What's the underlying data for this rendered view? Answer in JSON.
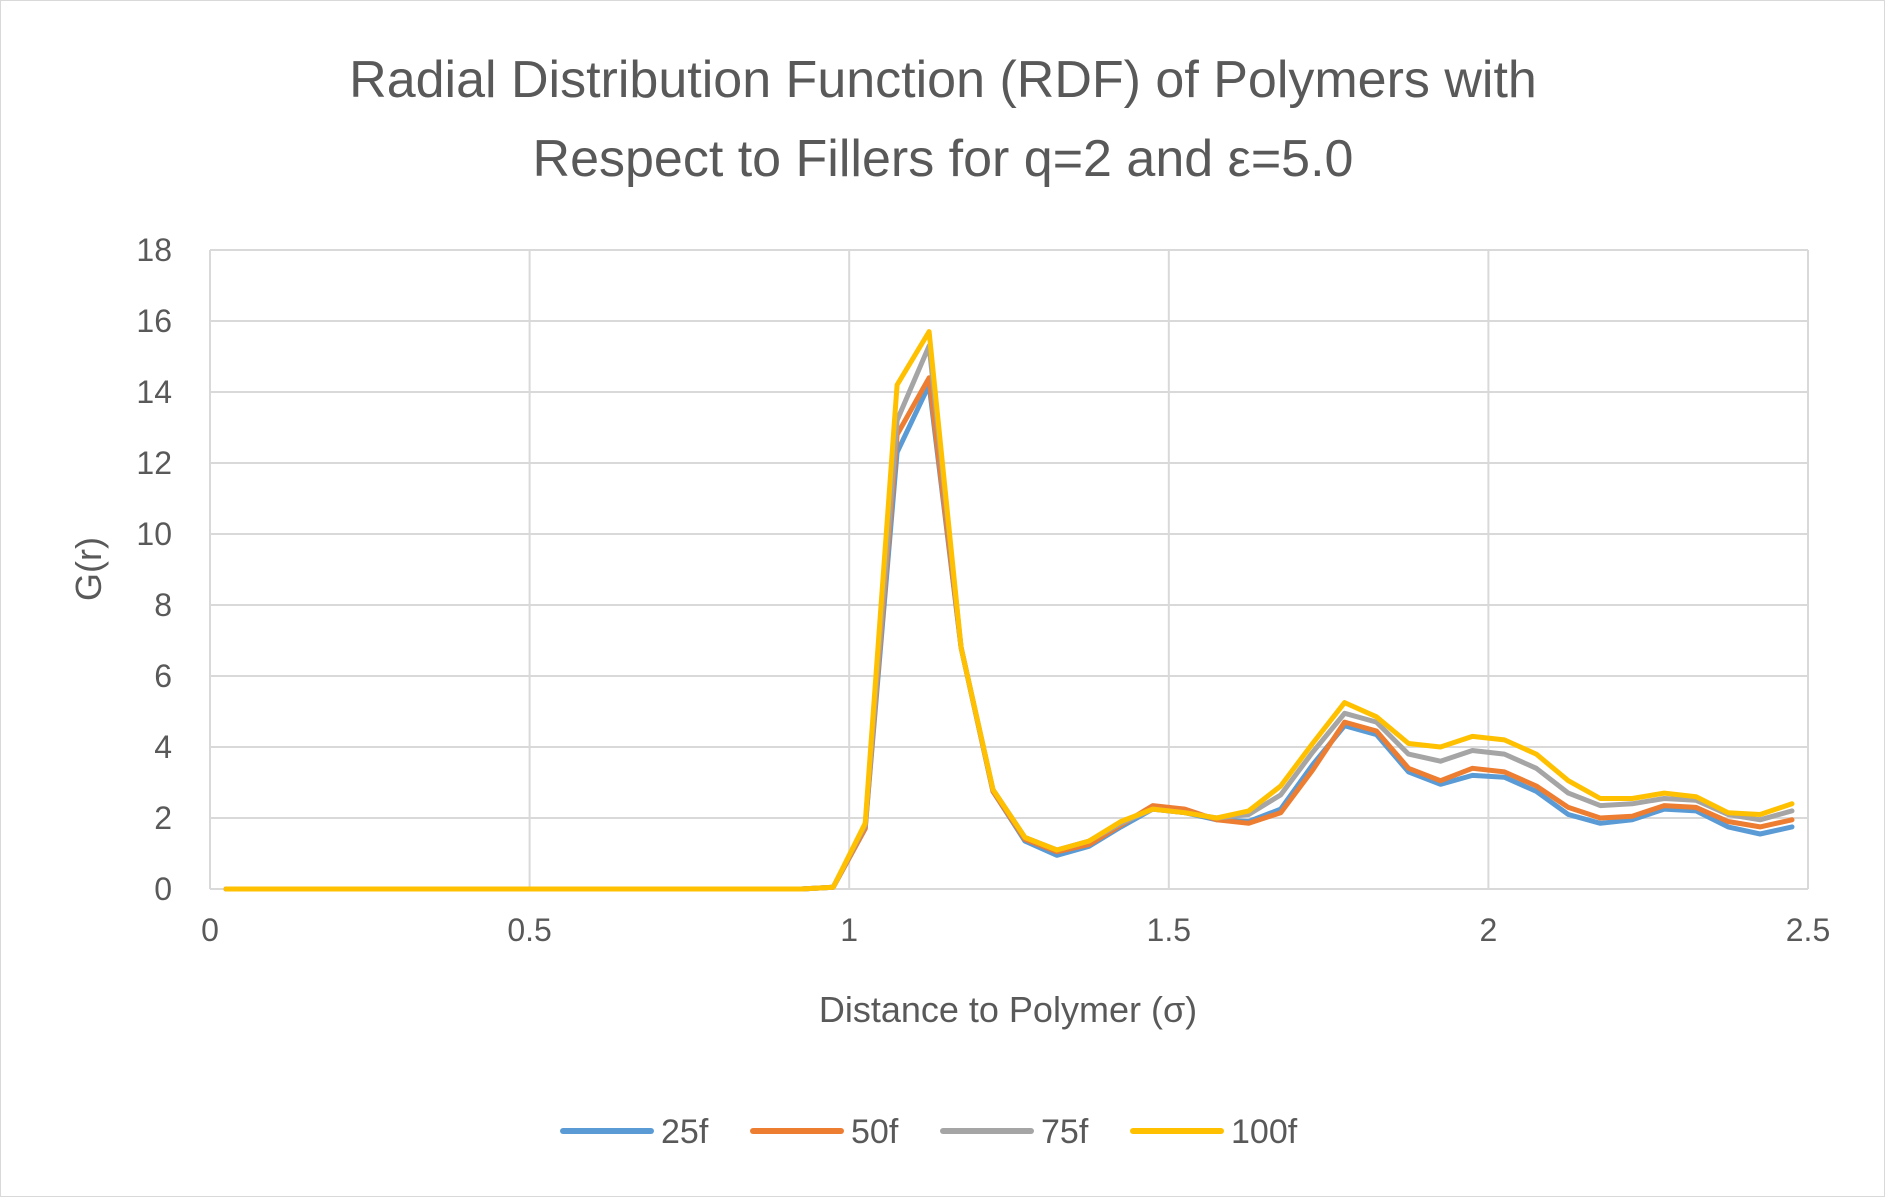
{
  "chart_data": {
    "type": "line",
    "title_lines": [
      "Radial Distribution Function (RDF) of Polymers with",
      "Respect to Fillers for q=2 and ε=5.0"
    ],
    "xlabel": "Distance to Polymer (σ)",
    "ylabel": "G(r)",
    "xlim": [
      0,
      2.5
    ],
    "ylim": [
      0,
      18
    ],
    "x_ticks": [
      "0",
      "0.5",
      "1",
      "1.5",
      "2",
      "2.5"
    ],
    "x_tick_values": [
      0,
      0.5,
      1,
      1.5,
      2,
      2.5
    ],
    "y_ticks": [
      "0",
      "2",
      "4",
      "6",
      "8",
      "10",
      "12",
      "14",
      "16",
      "18"
    ],
    "y_tick_values": [
      0,
      2,
      4,
      6,
      8,
      10,
      12,
      14,
      16,
      18
    ],
    "grid": true,
    "legend_position": "bottom",
    "x": [
      0.025,
      0.075,
      0.125,
      0.175,
      0.225,
      0.275,
      0.325,
      0.375,
      0.425,
      0.475,
      0.525,
      0.575,
      0.625,
      0.675,
      0.725,
      0.775,
      0.825,
      0.875,
      0.925,
      0.975,
      1.025,
      1.075,
      1.125,
      1.175,
      1.225,
      1.275,
      1.325,
      1.375,
      1.425,
      1.475,
      1.525,
      1.575,
      1.625,
      1.675,
      1.725,
      1.775,
      1.825,
      1.875,
      1.925,
      1.975,
      2.025,
      2.075,
      2.125,
      2.175,
      2.225,
      2.275,
      2.325,
      2.375,
      2.425,
      2.475
    ],
    "series": [
      {
        "name": "25f",
        "color": "#5b9bd5",
        "values": [
          0,
          0,
          0,
          0,
          0,
          0,
          0,
          0,
          0,
          0,
          0,
          0,
          0,
          0,
          0,
          0,
          0,
          0,
          0,
          0.05,
          1.7,
          12.3,
          14.2,
          6.8,
          2.75,
          1.35,
          0.95,
          1.2,
          1.75,
          2.25,
          2.15,
          1.95,
          1.9,
          2.25,
          3.5,
          4.6,
          4.35,
          3.3,
          2.95,
          3.2,
          3.15,
          2.75,
          2.1,
          1.85,
          1.95,
          2.25,
          2.2,
          1.75,
          1.55,
          1.75
        ]
      },
      {
        "name": "50f",
        "color": "#ed7d31",
        "values": [
          0,
          0,
          0,
          0,
          0,
          0,
          0,
          0,
          0,
          0,
          0,
          0,
          0,
          0,
          0,
          0,
          0,
          0,
          0,
          0.05,
          1.7,
          12.8,
          14.4,
          6.8,
          2.75,
          1.4,
          1.05,
          1.25,
          1.8,
          2.35,
          2.25,
          1.95,
          1.85,
          2.15,
          3.35,
          4.7,
          4.45,
          3.4,
          3.05,
          3.4,
          3.3,
          2.9,
          2.3,
          2.0,
          2.05,
          2.35,
          2.3,
          1.9,
          1.75,
          1.95
        ]
      },
      {
        "name": "75f",
        "color": "#a5a5a5",
        "values": [
          0,
          0,
          0,
          0,
          0,
          0,
          0,
          0,
          0,
          0,
          0,
          0,
          0,
          0,
          0,
          0,
          0,
          0,
          0,
          0.05,
          1.8,
          13.2,
          15.3,
          6.8,
          2.8,
          1.45,
          1.1,
          1.35,
          1.85,
          2.25,
          2.15,
          2.0,
          2.1,
          2.65,
          3.85,
          4.95,
          4.7,
          3.8,
          3.6,
          3.9,
          3.8,
          3.4,
          2.7,
          2.35,
          2.4,
          2.55,
          2.5,
          2.1,
          1.95,
          2.2
        ]
      },
      {
        "name": "100f",
        "color": "#ffc000",
        "values": [
          0,
          0,
          0,
          0,
          0,
          0,
          0,
          0,
          0,
          0,
          0,
          0,
          0,
          0,
          0,
          0,
          0,
          0,
          0,
          0.05,
          1.85,
          14.2,
          15.7,
          6.8,
          2.8,
          1.45,
          1.1,
          1.35,
          1.9,
          2.25,
          2.15,
          2.0,
          2.2,
          2.9,
          4.1,
          5.25,
          4.85,
          4.1,
          4.0,
          4.3,
          4.2,
          3.8,
          3.05,
          2.55,
          2.55,
          2.7,
          2.6,
          2.15,
          2.1,
          2.4
        ]
      }
    ]
  }
}
